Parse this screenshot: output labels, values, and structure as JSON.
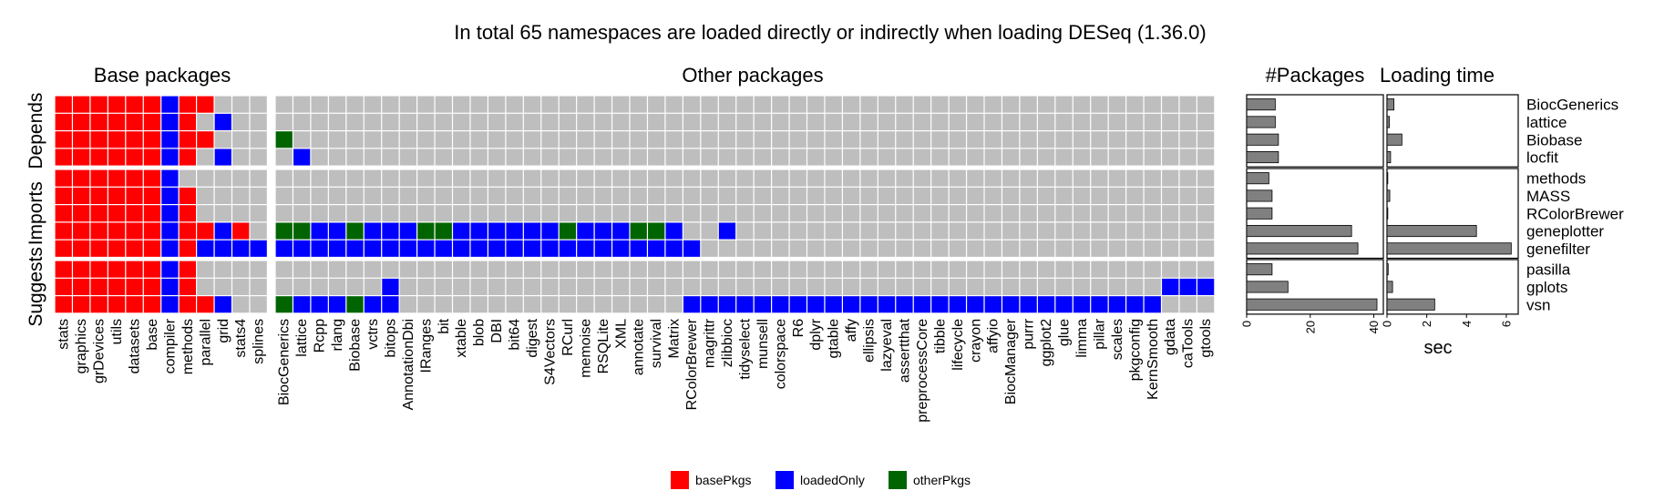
{
  "chart_data": {
    "type": "heatmap",
    "title": "In total 65 namespaces are loaded directly or indirectly when loading DESeq (1.36.0)",
    "facet_titles": [
      "Base packages",
      "Other packages",
      "#Packages",
      "Loading time"
    ],
    "row_groups": [
      "Depends",
      "Imports",
      "Suggests"
    ],
    "rows": [
      "BiocGenerics",
      "lattice",
      "Biobase",
      "locfit",
      "methods",
      "MASS",
      "RColorBrewer",
      "geneplotter",
      "genefilter",
      "pasilla",
      "gplots",
      "vsn"
    ],
    "row_group_index": [
      0,
      0,
      0,
      0,
      1,
      1,
      1,
      1,
      1,
      2,
      2,
      2
    ],
    "base_columns": [
      "stats",
      "graphics",
      "grDevices",
      "utils",
      "datasets",
      "base",
      "compiler",
      "methods",
      "parallel",
      "grid",
      "stats4",
      "splines"
    ],
    "other_columns": [
      "BiocGenerics",
      "lattice",
      "Rcpp",
      "rlang",
      "Biobase",
      "vctrs",
      "bitops",
      "AnnotationDbi",
      "IRanges",
      "bit",
      "xtable",
      "blob",
      "DBI",
      "bit64",
      "digest",
      "S4Vectors",
      "RCurl",
      "memoise",
      "RSQLite",
      "XML",
      "annotate",
      "survival",
      "Matrix",
      "RColorBrewer",
      "magrittr",
      "zlibbioc",
      "tidyselect",
      "munsell",
      "colorspace",
      "R6",
      "dplyr",
      "gtable",
      "affy",
      "ellipsis",
      "lazyeval",
      "assertthat",
      "preprocessCore",
      "tibble",
      "lifecycle",
      "crayon",
      "affyio",
      "BiocManager",
      "purrr",
      "ggplot2",
      "glue",
      "limma",
      "pillar",
      "scales",
      "pkgconfig",
      "KernSmooth",
      "gdata",
      "caTools",
      "gtools"
    ],
    "category_codes": {
      "r": "basePkgs",
      "b": "loadedOnly",
      "g": "otherPkgs",
      ".": "not loaded"
    },
    "base_matrix": [
      "rrrrrrbrr...",
      "rrrrrrbr.b..",
      "rrrrrrbrr...",
      "rrrrrrbr.b..",
      "rrrrrrb.....",
      "rrrrrrbr....",
      "rrrrrrbr....",
      "rrrrrrbrrbr.",
      "rrrrrrbrbbbb",
      "rrrrrrbr....",
      "rrrrrrbr....",
      "rrrrrrbrrb.."
    ],
    "other_matrix": [
      ".....................................................",
      ".....................................................",
      "g....................................................",
      ".b...................................................",
      ".....................................................",
      ".....................................................",
      ".....................................................",
      "ggbbgbbbggbbbbbbgbbbggb..b...........................",
      "bbbbbbbbbbbbbbbbbbbbbbbb.............................",
      ".....................................................",
      "......b...........................................bbbb",
      "gbbbgbb................bbbbbbbbbbbbbbbbbbbbbbbbbbb...."
    ],
    "n_packages": [
      9,
      9,
      10,
      10,
      7,
      8,
      8,
      33,
      35,
      8,
      13,
      41
    ],
    "n_packages_axis": {
      "ticks": [
        0,
        20,
        40
      ],
      "lim": [
        0,
        43
      ]
    },
    "loading_time_sec": [
      0.35,
      0.12,
      0.75,
      0.18,
      0.04,
      0.14,
      0.04,
      4.5,
      6.25,
      0.06,
      0.28,
      2.4
    ],
    "loading_time_axis": {
      "ticks": [
        0,
        2,
        4,
        6
      ],
      "lim": [
        0,
        6.6
      ],
      "xlabel": "sec"
    },
    "legend": [
      {
        "code": "r",
        "label": "basePkgs",
        "color": "#FF0000"
      },
      {
        "code": "b",
        "label": "loadedOnly",
        "color": "#0000FF"
      },
      {
        "code": "g",
        "label": "otherPkgs",
        "color": "#006400"
      }
    ],
    "colors": {
      "empty": "#BEBEBE",
      "bar_fill": "#808080",
      "background": "#FFFFFF"
    }
  }
}
